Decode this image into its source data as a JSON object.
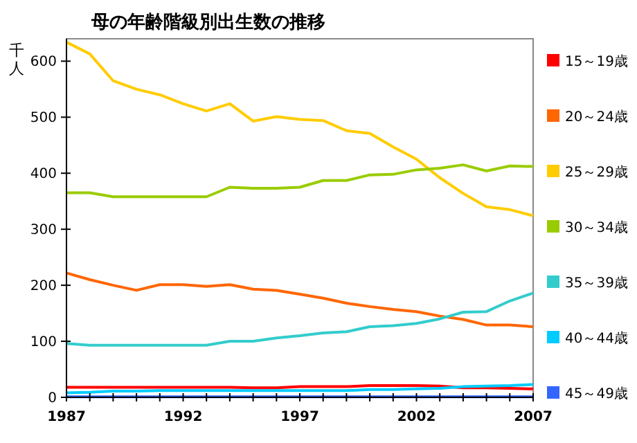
{
  "chart_data": {
    "type": "line",
    "title": "母の年齢階級別出生数の推移",
    "ylabel": "千人",
    "x": [
      1987,
      1988,
      1989,
      1990,
      1991,
      1992,
      1993,
      1994,
      1995,
      1996,
      1997,
      1998,
      1999,
      2000,
      2001,
      2002,
      2003,
      2004,
      2005,
      2006,
      2007
    ],
    "xlim": [
      1987,
      2007
    ],
    "xticks": [
      1987,
      {
        "value": 1988,
        "label": null
      },
      {
        "value": 1989,
        "label": null
      },
      {
        "value": 1990,
        "label": null
      },
      {
        "value": 1991,
        "label": null
      },
      1992,
      {
        "value": 1993,
        "label": null
      },
      {
        "value": 1994,
        "label": null
      },
      {
        "value": 1995,
        "label": null
      },
      {
        "value": 1996,
        "label": null
      },
      1997,
      {
        "value": 1998,
        "label": null
      },
      {
        "value": 1999,
        "label": null
      },
      {
        "value": 2000,
        "label": null
      },
      {
        "value": 2001,
        "label": null
      },
      2002,
      {
        "value": 2003,
        "label": null
      },
      {
        "value": 2004,
        "label": null
      },
      {
        "value": 2005,
        "label": null
      },
      {
        "value": 2006,
        "label": null
      },
      2007
    ],
    "ylim": [
      0,
      640
    ],
    "yticks": [
      0,
      100,
      200,
      300,
      400,
      500,
      600
    ],
    "grid": false,
    "legend": "right",
    "marker": "none",
    "line_style": "solid",
    "series": [
      {
        "name": "15～19歳",
        "color": "#ff0000",
        "values": [
          18,
          18,
          18,
          18,
          18,
          18,
          18,
          18,
          17,
          17,
          19,
          19,
          19,
          21,
          21,
          21,
          20,
          17,
          17,
          16,
          15
        ]
      },
      {
        "name": "20～24歳",
        "color": "#ff6600",
        "values": [
          222,
          210,
          200,
          191,
          201,
          201,
          198,
          201,
          193,
          191,
          184,
          177,
          168,
          162,
          157,
          153,
          145,
          139,
          129,
          129,
          126
        ]
      },
      {
        "name": "25～29歳",
        "color": "#ffcc00",
        "values": [
          634,
          613,
          565,
          550,
          540,
          524,
          511,
          524,
          493,
          501,
          496,
          494,
          476,
          471,
          447,
          425,
          392,
          364,
          340,
          335,
          324
        ]
      },
      {
        "name": "30～34歳",
        "color": "#99cc00",
        "values": [
          365,
          365,
          358,
          358,
          358,
          358,
          358,
          375,
          373,
          373,
          375,
          387,
          387,
          397,
          398,
          406,
          409,
          415,
          404,
          413,
          412
        ]
      },
      {
        "name": "35～39歳",
        "color": "#33cccc",
        "values": [
          96,
          93,
          93,
          93,
          93,
          93,
          93,
          100,
          100,
          106,
          110,
          115,
          117,
          126,
          128,
          132,
          140,
          152,
          153,
          172,
          186
        ]
      },
      {
        "name": "40～44歳",
        "color": "#00ccff",
        "values": [
          8,
          9,
          11,
          11,
          12,
          12,
          12,
          12,
          12,
          12,
          12,
          12,
          12,
          14,
          14,
          15,
          16,
          19,
          20,
          21,
          23
        ]
      },
      {
        "name": "45～49歳",
        "color": "#3366ff",
        "values": [
          1,
          1,
          1,
          1,
          1,
          1,
          1,
          1,
          1,
          1,
          1,
          1,
          1,
          1,
          1,
          1,
          1,
          1,
          1,
          1,
          1
        ]
      }
    ]
  }
}
